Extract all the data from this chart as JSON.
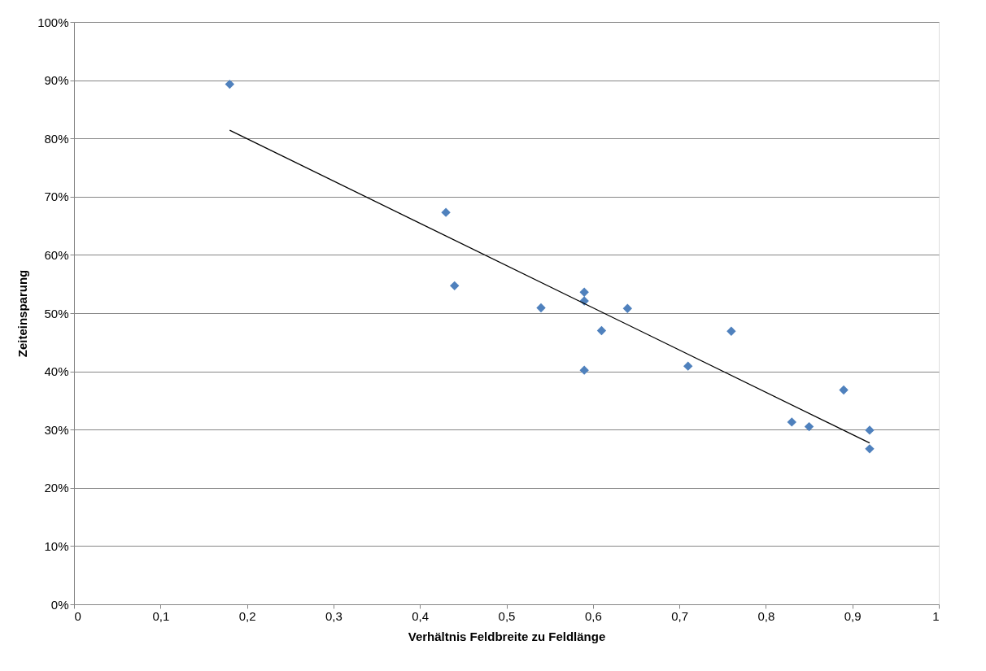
{
  "chart_data": {
    "type": "scatter",
    "xlabel": "Verhältnis Feldbreite zu Feldlänge",
    "ylabel": "Zeiteinsparung",
    "series": [
      {
        "color": "#4f81bd",
        "marker": "diamond",
        "x": [
          0.18,
          0.43,
          0.44,
          0.54,
          0.59,
          0.59,
          0.59,
          0.61,
          0.64,
          0.71,
          0.76,
          0.83,
          0.85,
          0.89,
          0.92,
          0.92
        ],
        "values": [
          89.3,
          67.3,
          54.7,
          50.9,
          53.6,
          52.1,
          40.2,
          47.0,
          50.8,
          40.9,
          46.9,
          31.3,
          30.5,
          36.8,
          29.9,
          26.7
        ]
      },
      {
        "type": "line",
        "color": "#000000",
        "marker": "none",
        "line_style": "solid",
        "x": [
          0.18,
          0.92
        ],
        "values": [
          81.4,
          27.7
        ]
      }
    ],
    "xlim": [
      0,
      1
    ],
    "xticks": [
      0,
      {
        "value": 0.1,
        "label": "0,1"
      },
      {
        "value": 0.2,
        "label": "0,2"
      },
      {
        "value": 0.3,
        "label": "0,3"
      },
      {
        "value": 0.4,
        "label": "0,4"
      },
      {
        "value": 0.5,
        "label": "0,5"
      },
      {
        "value": 0.6,
        "label": "0,6"
      },
      {
        "value": 0.7,
        "label": "0,7"
      },
      {
        "value": 0.8,
        "label": "0,8"
      },
      {
        "value": 0.9,
        "label": "0,9"
      },
      1
    ],
    "ylim": [
      0,
      100
    ],
    "yticks": [
      {
        "value": 0,
        "label": "0%"
      },
      {
        "value": 10,
        "label": "10%"
      },
      {
        "value": 20,
        "label": "20%"
      },
      {
        "value": 30,
        "label": "30%"
      },
      {
        "value": 40,
        "label": "40%"
      },
      {
        "value": 50,
        "label": "50%"
      },
      {
        "value": 60,
        "label": "60%"
      },
      {
        "value": 70,
        "label": "70%"
      },
      {
        "value": 80,
        "label": "80%"
      },
      {
        "value": 90,
        "label": "90%"
      },
      {
        "value": 100,
        "label": "100%"
      }
    ],
    "grid": "y"
  }
}
